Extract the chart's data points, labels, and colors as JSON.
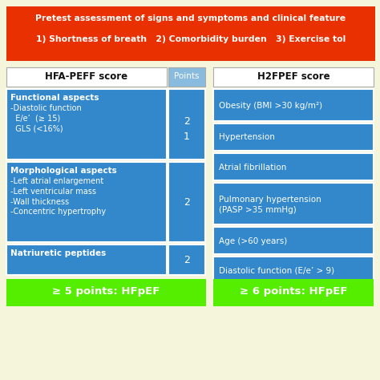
{
  "bg_color": "#f5f5dc",
  "header_bg": "#e83000",
  "header_text1": "Pretest assessment of signs and symptoms and clinical feature",
  "header_text2": "1) Shortness of breath   2) Comorbidity burden   3) Exercise tol",
  "header_text_color": "#ffffff",
  "left_table_header": "HFA-PEFF score",
  "left_points_header": "Points",
  "points_bg": "#88bbdd",
  "table_bg": "#3388cc",
  "table_bg_dark": "#2277bb",
  "left_rows": [
    {
      "text_bold": "Functional aspects",
      "text_rest": "-Diastolic function\n  E/e’  (≥ 15)\n  GLS (<16%)",
      "points": "2\n1"
    },
    {
      "text_bold": "Morphological aspects",
      "text_rest": "-Left atrial enlargement\n-Left ventricular mass\n-Wall thickness\n-Concentric hypertrophy",
      "points": "2"
    },
    {
      "text_bold": "Natriuretic peptides",
      "text_rest": "",
      "points": "2"
    }
  ],
  "left_footer": "≥ 5 points: HFpEF",
  "footer_bg": "#55ee00",
  "right_table_header": "H2FPEF score",
  "right_rows": [
    "Obesity (BMI >30 kg/m²)",
    "Hypertension",
    "Atrial fibrillation",
    "Pulmonary hypertension\n(PASP >35 mmHg)",
    "Age (>60 years)",
    "Diastolic function (E/e’ > 9)"
  ],
  "right_footer": "≥ 6 points: HFpEF",
  "fig_w": 4.74,
  "fig_h": 4.74,
  "dpi": 100
}
